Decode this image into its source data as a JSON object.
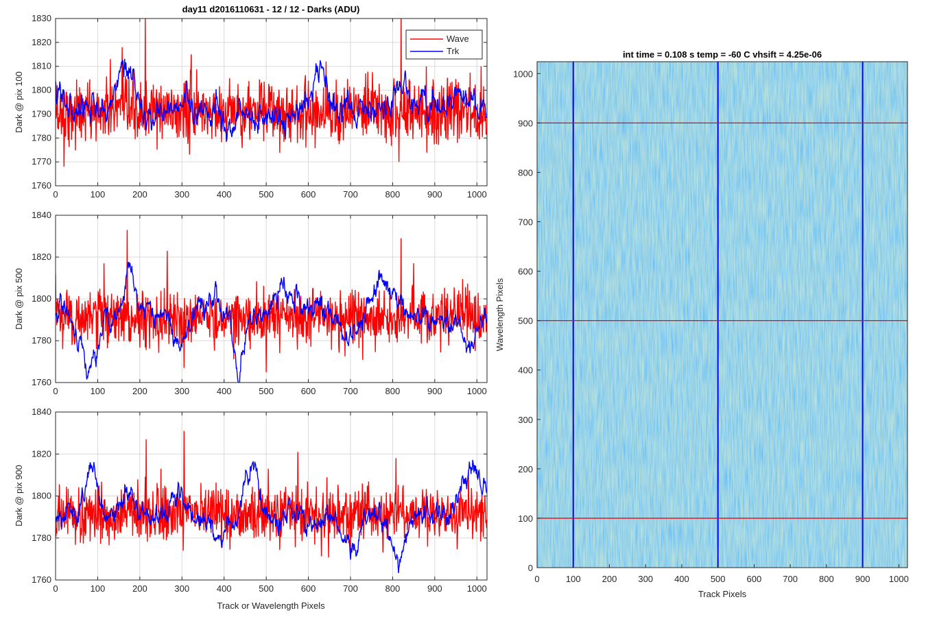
{
  "figure": {
    "suptitle": "day11 d2016110631 - 12 / 12 - Darks (ADU)",
    "image_title": "int time = 0.108 s   temp = -60 C   vhsift = 4.25e-06"
  },
  "chart_data": [
    {
      "type": "line",
      "ylabel": "Dark @ pix 100",
      "xlabel": "",
      "xlim": [
        0,
        1024
      ],
      "ylim": [
        1760,
        1830
      ],
      "xticks": [
        0,
        100,
        200,
        300,
        400,
        500,
        600,
        700,
        800,
        900,
        1000
      ],
      "yticks": [
        1760,
        1770,
        1780,
        1790,
        1800,
        1810,
        1820,
        1830
      ],
      "grid": true,
      "legend": "top-right",
      "series": [
        {
          "name": "Wave",
          "color": "#ff0000",
          "mean": 1791,
          "noise": 6.5,
          "smooth": 0.0,
          "spikes": [
            [
              20,
              1768
            ],
            [
              130,
              1813
            ],
            [
              158,
              1818
            ],
            [
              213,
              1830
            ],
            [
              322,
              1815
            ],
            [
              445,
              1797
            ],
            [
              600,
              1804
            ],
            [
              642,
              1812
            ],
            [
              815,
              1770
            ],
            [
              820,
              1830
            ],
            [
              880,
              1810
            ],
            [
              1010,
              1810
            ]
          ]
        },
        {
          "name": "Trk",
          "color": "#0000ff",
          "mean": 1791,
          "noise": 4.5,
          "smooth": 0.8,
          "bumps": [
            [
              5,
              1806,
              15
            ],
            [
              160,
              1808,
              30
            ],
            [
              300,
              1796,
              25
            ],
            [
              410,
              1778,
              15
            ],
            [
              475,
              1790,
              10
            ],
            [
              630,
              1812,
              20
            ],
            [
              820,
              1801,
              30
            ],
            [
              960,
              1797,
              40
            ]
          ]
        }
      ]
    },
    {
      "type": "line",
      "ylabel": "Dark @ pix 500",
      "xlabel": "",
      "xlim": [
        0,
        1024
      ],
      "ylim": [
        1760,
        1840
      ],
      "xticks": [
        0,
        100,
        200,
        300,
        400,
        500,
        600,
        700,
        800,
        900,
        1000
      ],
      "yticks": [
        1760,
        1780,
        1800,
        1820,
        1840
      ],
      "grid": true,
      "series": [
        {
          "name": "Wave",
          "color": "#ff0000",
          "mean": 1791,
          "noise": 6.5,
          "smooth": 0.0,
          "spikes": [
            [
              0,
              1812
            ],
            [
              115,
              1817
            ],
            [
              170,
              1833
            ],
            [
              265,
              1823
            ],
            [
              305,
              1767
            ],
            [
              500,
              1765
            ],
            [
              820,
              1829
            ],
            [
              850,
              1817
            ]
          ]
        },
        {
          "name": "Trk",
          "color": "#0000ff",
          "mean": 1792,
          "noise": 4.5,
          "smooth": 0.8,
          "bumps": [
            [
              80,
              1768,
              30
            ],
            [
              175,
              1818,
              18
            ],
            [
              290,
              1775,
              25
            ],
            [
              370,
              1802,
              35
            ],
            [
              435,
              1765,
              15
            ],
            [
              545,
              1805,
              40
            ],
            [
              620,
              1795,
              20
            ],
            [
              700,
              1784,
              30
            ],
            [
              770,
              1808,
              35
            ],
            [
              980,
              1780,
              30
            ]
          ]
        }
      ]
    },
    {
      "type": "line",
      "ylabel": "Dark @ pix 900",
      "xlabel": "Track or Wavelength Pixels",
      "xlim": [
        0,
        1024
      ],
      "ylim": [
        1760,
        1840
      ],
      "xticks": [
        0,
        100,
        200,
        300,
        400,
        500,
        600,
        700,
        800,
        900,
        1000
      ],
      "yticks": [
        1760,
        1780,
        1800,
        1820,
        1840
      ],
      "grid": true,
      "series": [
        {
          "name": "Wave",
          "color": "#ff0000",
          "mean": 1791,
          "noise": 6.5,
          "smooth": 0.0,
          "spikes": [
            [
              215,
              1827
            ],
            [
              250,
              1813
            ],
            [
              305,
              1831
            ],
            [
              505,
              1813
            ],
            [
              575,
              1821
            ],
            [
              700,
              1772
            ],
            [
              808,
              1818
            ],
            [
              980,
              1812
            ]
          ]
        },
        {
          "name": "Trk",
          "color": "#0000ff",
          "mean": 1790,
          "noise": 4.5,
          "smooth": 0.8,
          "bumps": [
            [
              85,
              1812,
              20
            ],
            [
              170,
              1800,
              30
            ],
            [
              290,
              1802,
              25
            ],
            [
              390,
              1780,
              30
            ],
            [
              465,
              1815,
              20
            ],
            [
              570,
              1795,
              25
            ],
            [
              700,
              1775,
              30
            ],
            [
              815,
              1772,
              25
            ],
            [
              990,
              1812,
              40
            ]
          ]
        }
      ]
    },
    {
      "type": "heatmap",
      "title": "int time = 0.108 s   temp = -60 C   vhsift = 4.25e-06",
      "xlabel": "Track Pixels",
      "ylabel": "Wavelength Pixels",
      "xlim": [
        0,
        1024
      ],
      "ylim": [
        0,
        1024
      ],
      "xticks": [
        0,
        100,
        200,
        300,
        400,
        500,
        600,
        700,
        800,
        900,
        1000
      ],
      "yticks": [
        0,
        100,
        200,
        300,
        400,
        500,
        600,
        700,
        800,
        900,
        1000
      ],
      "colormap": "parula",
      "base_color": "#2aa0d0",
      "markers": {
        "vertical_lines": [
          100,
          500,
          900
        ],
        "vertical_color": "#0000ff",
        "horizontal_lines": [
          100,
          500,
          900
        ],
        "horizontal_color": "#ff0000"
      }
    }
  ]
}
